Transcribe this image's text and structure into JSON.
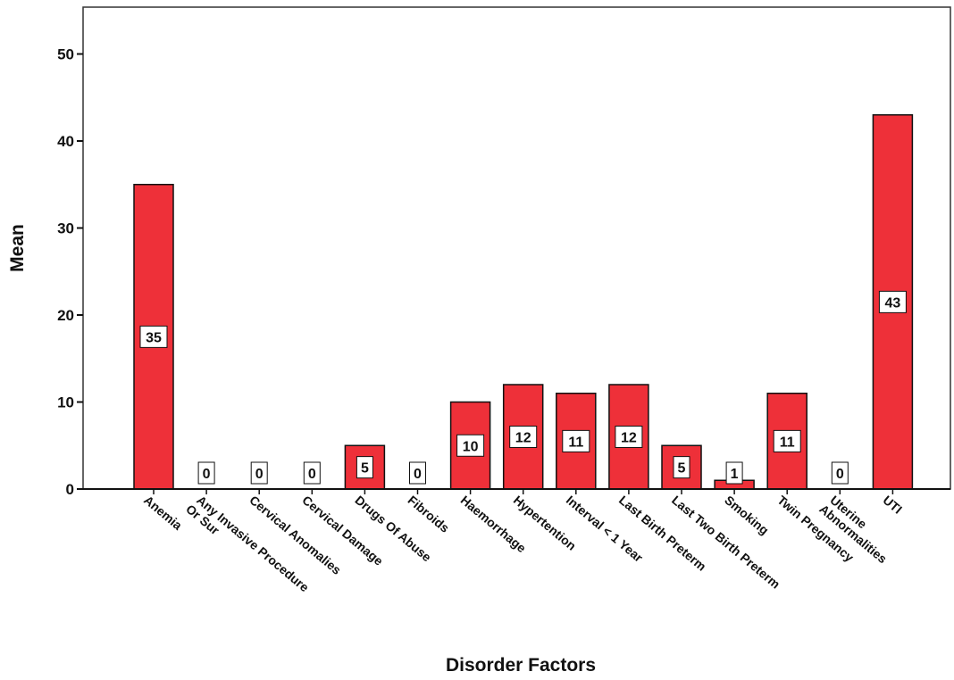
{
  "chart_data": {
    "type": "bar",
    "title": "",
    "xlabel": "Disorder Factors",
    "ylabel": "Mean",
    "ylim": [
      0,
      55
    ],
    "yticks": [
      0,
      10,
      20,
      30,
      40,
      50
    ],
    "grid": false,
    "bar_color": "#ee3039",
    "bar_outline_color": "#111111",
    "categories": [
      [
        "Anemia"
      ],
      [
        "Any Invasive Procedure",
        "Or Sur"
      ],
      [
        "Cervical Anomalies"
      ],
      [
        "Cervical Damage"
      ],
      [
        "Drugs Of Abuse"
      ],
      [
        "Fibroids"
      ],
      [
        "Haemorrhage"
      ],
      [
        "Hypertention"
      ],
      [
        "Interval < 1 Year"
      ],
      [
        "Last Birth Preterm"
      ],
      [
        "Last Two Birth Preterm"
      ],
      [
        "Smoking"
      ],
      [
        "Twin Pregnancy"
      ],
      [
        "Uterine",
        "Abnormalities"
      ],
      [
        "UTI"
      ]
    ],
    "values": [
      35,
      0,
      0,
      0,
      5,
      0,
      10,
      12,
      11,
      12,
      5,
      1,
      11,
      0,
      43
    ],
    "data_labels": [
      "35",
      "0",
      "0",
      "0",
      "5",
      "0",
      "10",
      "12",
      "11",
      "12",
      "5",
      "1",
      "11",
      "0",
      "43"
    ]
  }
}
